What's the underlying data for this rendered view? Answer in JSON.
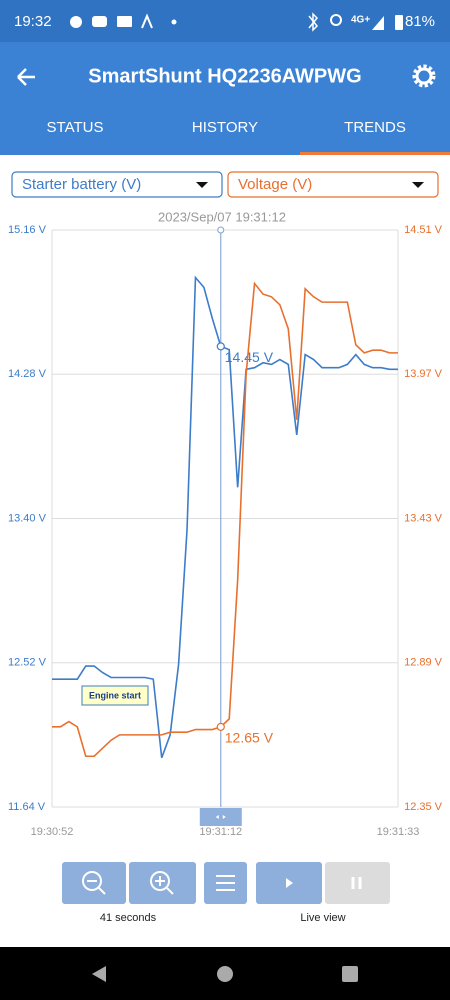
{
  "status_bar": {
    "time": "19:32",
    "network": "4G+",
    "battery": "81%"
  },
  "app_bar": {
    "title": "SmartShunt HQ2236AWPWG"
  },
  "tabs": [
    "STATUS",
    "HISTORY",
    "TRENDS"
  ],
  "chart_data": {
    "type": "line",
    "cursor_label": "2023/Sep/07 19:31:12",
    "annotation": "Engine start",
    "x": [
      "19:30:52",
      "19:30:53",
      "19:30:54",
      "19:30:55",
      "19:30:56",
      "19:30:57",
      "19:30:58",
      "19:30:59",
      "19:31:00",
      "19:31:01",
      "19:31:02",
      "19:31:03",
      "19:31:04",
      "19:31:05",
      "19:31:06",
      "19:31:07",
      "19:31:08",
      "19:31:09",
      "19:31:10",
      "19:31:11",
      "19:31:12",
      "19:31:13",
      "19:31:14",
      "19:31:15",
      "19:31:16",
      "19:31:17",
      "19:31:18",
      "19:31:19",
      "19:31:20",
      "19:31:21",
      "19:31:22",
      "19:31:23",
      "19:31:24",
      "19:31:25",
      "19:31:26",
      "19:31:27",
      "19:31:28",
      "19:31:29",
      "19:31:30",
      "19:31:31",
      "19:31:32",
      "19:31:33"
    ],
    "xticks": [
      0,
      20,
      41
    ],
    "ylim": [
      11.64,
      15.16
    ],
    "yticks": [
      {
        "value": 15.16,
        "label": "15.16 V"
      },
      {
        "value": 14.28,
        "label": "14.28 V"
      },
      {
        "value": 13.4,
        "label": "13.40 V"
      },
      {
        "value": 12.52,
        "label": "12.52 V"
      },
      {
        "value": 11.64,
        "label": "11.64 V"
      }
    ],
    "y2lim": [
      12.35,
      14.51
    ],
    "y2ticks": [
      {
        "value": 14.51,
        "label": "14.51 V"
      },
      {
        "value": 13.97,
        "label": "13.97 V"
      },
      {
        "value": 13.43,
        "label": "13.43 V"
      },
      {
        "value": 12.89,
        "label": "12.89 V"
      },
      {
        "value": 12.35,
        "label": "12.35 V"
      }
    ],
    "grid": true,
    "series": [
      {
        "name": "Starter battery (V)",
        "color": "#3d7cc9",
        "cursor_value_label": "14.45 V",
        "values": [
          12.42,
          12.42,
          12.42,
          12.42,
          12.5,
          12.5,
          12.46,
          12.43,
          12.43,
          12.43,
          12.43,
          12.43,
          12.42,
          11.94,
          12.08,
          12.51,
          13.33,
          14.87,
          14.81,
          14.62,
          14.45,
          14.43,
          13.59,
          14.31,
          14.32,
          14.35,
          14.34,
          14.37,
          14.34,
          13.91,
          14.4,
          14.37,
          14.32,
          14.32,
          14.32,
          14.34,
          14.4,
          14.34,
          14.32,
          14.32,
          14.31,
          14.31
        ]
      },
      {
        "name": "Voltage (V)",
        "color": "#e8702e",
        "axis": "y2",
        "cursor_value_label": "12.65 V",
        "values": [
          12.65,
          12.65,
          12.67,
          12.65,
          12.54,
          12.54,
          12.57,
          12.6,
          12.62,
          12.62,
          12.62,
          12.62,
          12.62,
          12.62,
          12.63,
          12.63,
          12.63,
          12.64,
          12.64,
          12.64,
          12.65,
          12.68,
          13.2,
          13.97,
          14.31,
          14.27,
          14.26,
          14.23,
          14.14,
          13.8,
          14.29,
          14.26,
          14.24,
          14.24,
          14.24,
          14.24,
          14.08,
          14.05,
          14.06,
          14.06,
          14.05,
          14.05
        ]
      }
    ]
  },
  "controls": {
    "zoom_span": "41 seconds",
    "live_label": "Live view"
  }
}
